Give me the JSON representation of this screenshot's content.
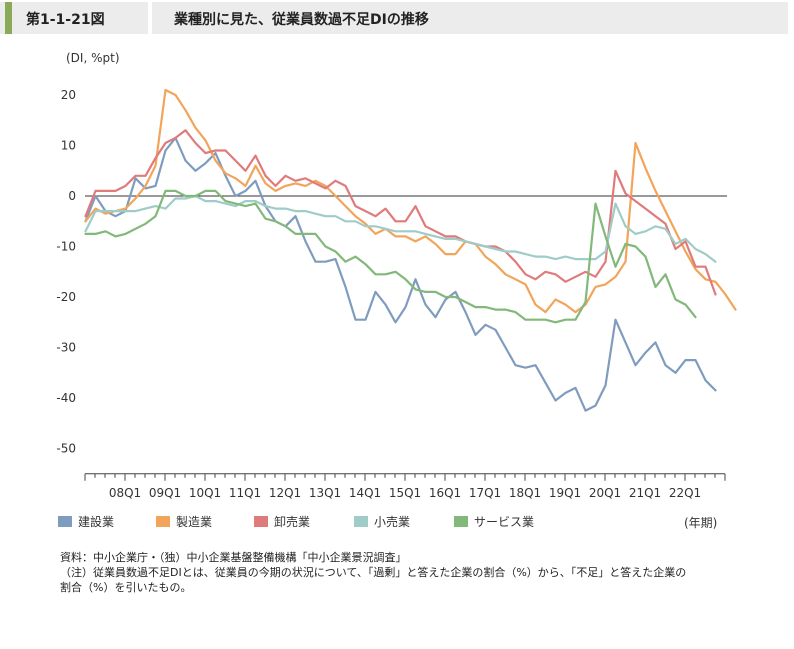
{
  "figure": {
    "label": "第1-1-21図",
    "title": "業種別に見た、従業員数過不足DIの推移"
  },
  "chart_data": {
    "type": "line",
    "y_unit_label": "(DI, %pt)",
    "x_unit_label": "(年期)",
    "ylim": [
      -55,
      25
    ],
    "yticks": [
      20,
      10,
      0,
      -10,
      -20,
      -30,
      -40,
      -50
    ],
    "x_start": "07Q1",
    "x_tick_labels": [
      "08Q1",
      "09Q1",
      "10Q1",
      "11Q1",
      "12Q1",
      "13Q1",
      "14Q1",
      "15Q1",
      "16Q1",
      "17Q1",
      "18Q1",
      "19Q1",
      "20Q1",
      "21Q1",
      "22Q1"
    ],
    "zero_line": true,
    "series": [
      {
        "name": "建設業",
        "color": "#7f9cbf",
        "values": [
          -5,
          0,
          -3,
          -4,
          -3,
          3.5,
          1.5,
          2,
          9,
          11.5,
          7,
          5,
          6.5,
          8.5,
          4,
          0,
          1,
          3,
          -2,
          -5,
          -6,
          -4,
          -9,
          -13,
          -13,
          -12.5,
          -18,
          -24.5,
          -24.5,
          -19,
          -21.5,
          -25,
          -22,
          -16.5,
          -21.5,
          -24,
          -20.5,
          -19,
          -23,
          -27.5,
          -25.5,
          -26.5,
          -30,
          -33.5,
          -34,
          -33.5,
          -37,
          -40.5,
          -39,
          -38,
          -42.5,
          -41.5,
          -37.5,
          -24.5,
          -29,
          -33.5,
          -31,
          -29,
          -33.5,
          -35,
          -32.5,
          -32.5,
          -36.5,
          -38.5
        ]
      },
      {
        "name": "製造業",
        "color": "#f2a55a",
        "values": [
          -5,
          -2.5,
          -3.5,
          -3,
          -2.5,
          -0.5,
          2,
          6,
          21,
          20,
          17,
          13.5,
          11,
          7,
          4.5,
          3.5,
          2,
          6,
          2.5,
          1,
          2,
          2.5,
          2,
          3,
          2,
          0,
          -2,
          -4,
          -5.5,
          -7.5,
          -6.5,
          -8,
          -8,
          -9,
          -8,
          -9.5,
          -11.5,
          -11.5,
          -9,
          -9.5,
          -12,
          -13.5,
          -15.5,
          -16.5,
          -17.5,
          -21.5,
          -23,
          -20.5,
          -21.5,
          -23,
          -21.5,
          -18,
          -17.5,
          -16,
          -13,
          10.5,
          5.5,
          1,
          -3,
          -7,
          -11,
          -14.5,
          -16.5,
          -17,
          -19.5,
          -22.5
        ]
      },
      {
        "name": "卸売業",
        "color": "#e07b7b",
        "values": [
          -4,
          1,
          1,
          1,
          2,
          4,
          4,
          7.5,
          10.5,
          11.5,
          13,
          10.5,
          8.5,
          9,
          9,
          7,
          5,
          8,
          4,
          2,
          4,
          3,
          3.5,
          2.5,
          1.5,
          3,
          2,
          -2,
          -3,
          -4,
          -2.5,
          -5,
          -5,
          -2,
          -6,
          -7,
          -8,
          -8,
          -9,
          -9.5,
          -10,
          -10,
          -11,
          -13,
          -15.5,
          -16.5,
          -15,
          -15.5,
          -17,
          -16,
          -15,
          -16,
          -13,
          5,
          0.5,
          -1,
          -2.5,
          -4,
          -5.5,
          -10.5,
          -9,
          -14,
          -14,
          -19.5
        ]
      },
      {
        "name": "小売業",
        "color": "#9fccc8",
        "values": [
          -7,
          -3,
          -3,
          -3,
          -3,
          -3,
          -2.5,
          -2,
          -2.5,
          -0.5,
          -0.5,
          0,
          -1,
          -1,
          -1.5,
          -2,
          -1,
          -1,
          -2,
          -2.5,
          -2.5,
          -3,
          -3,
          -3.5,
          -4,
          -4,
          -5,
          -5,
          -6,
          -6,
          -6.5,
          -7,
          -7,
          -7,
          -7.5,
          -8,
          -8.5,
          -8.5,
          -9,
          -9.5,
          -10,
          -10.5,
          -11,
          -11,
          -11.5,
          -12,
          -12,
          -12.5,
          -12,
          -12.5,
          -12.5,
          -12.5,
          -11,
          -1.5,
          -6,
          -7.5,
          -7,
          -6,
          -6.5,
          -9.5,
          -8.5,
          -10.5,
          -11.5,
          -13
        ]
      },
      {
        "name": "サービス業",
        "color": "#82b87a",
        "values": [
          -7.5,
          -7.5,
          -7,
          -8,
          -7.5,
          -6.5,
          -5.5,
          -4,
          1,
          1,
          0,
          0,
          1,
          1,
          -1,
          -1.5,
          -2,
          -1.5,
          -4.5,
          -5,
          -6,
          -7.5,
          -7.5,
          -7.5,
          -10,
          -11,
          -13,
          -12,
          -13.5,
          -15.5,
          -15.5,
          -15,
          -16.5,
          -18.5,
          -19,
          -19,
          -20,
          -20,
          -21,
          -22,
          -22,
          -22.5,
          -22.5,
          -23,
          -24.5,
          -24.5,
          -24.5,
          -25,
          -24.5,
          -24.5,
          -21,
          -1.5,
          -8,
          -14,
          -9.5,
          -10,
          -12,
          -18,
          -15.5,
          -20.5,
          -21.5,
          -24
        ]
      }
    ]
  },
  "notes": {
    "source": "資料：中小企業庁・（独）中小企業基盤整備機構「中小企業景況調査」",
    "note_line1": "（注）従業員数過不足DIとは、従業員の今期の状況について、「過剰」と答えた企業の割合（%）から、「不足」と答えた企業の",
    "note_line2": "割合（%）を引いたもの。"
  }
}
